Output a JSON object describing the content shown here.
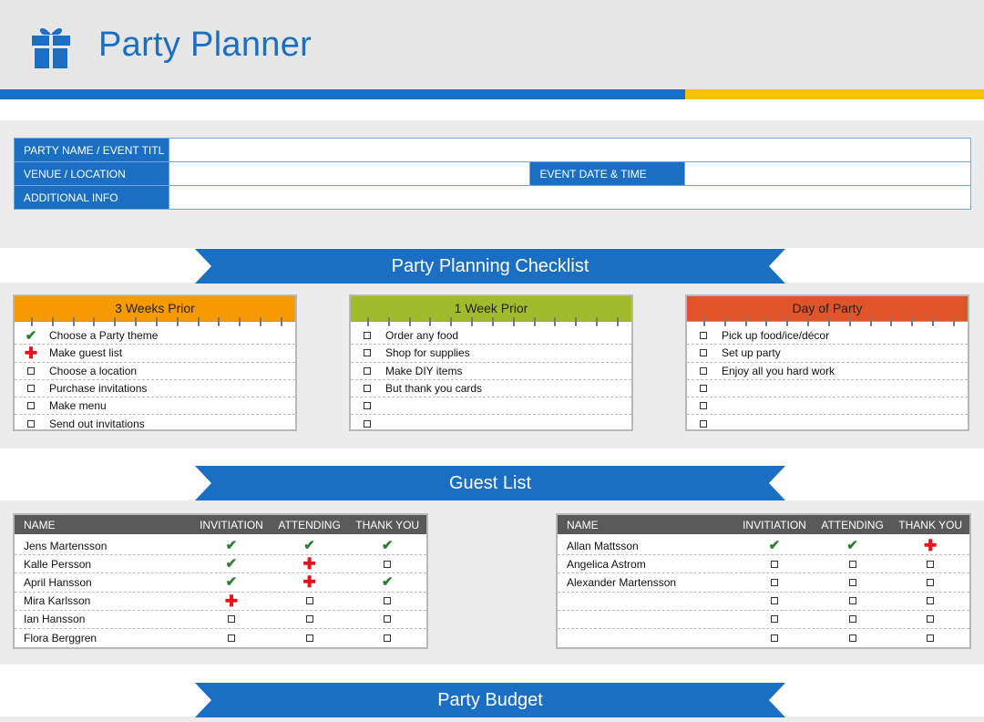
{
  "app": {
    "title": "Party Planner",
    "colors": {
      "brand_blue": "#1b6fc2",
      "accent_yellow": "#f8c200",
      "weeks3": "#f59a00",
      "week1": "#a2bb2d",
      "day": "#e0542a",
      "header_gray": "#595959"
    },
    "logo_icon": "gift-icon"
  },
  "event_info": {
    "party_name_label": "PARTY NAME / EVENT TITL",
    "party_name_value": "",
    "venue_label": "VENUE / LOCATION",
    "venue_value": "",
    "event_date_label": "EVENT DATE & TIME",
    "event_date_value": "",
    "additional_label": "ADDITIONAL INFO",
    "additional_value": ""
  },
  "sections": {
    "checklist": "Party Planning Checklist",
    "guests": "Guest List",
    "budget": "Party Budget"
  },
  "checklists": [
    {
      "title": "3 Weeks Prior",
      "items": [
        {
          "status": "check",
          "text": "Choose a Party theme"
        },
        {
          "status": "plus",
          "text": "Make guest list"
        },
        {
          "status": "box",
          "text": "Choose a location"
        },
        {
          "status": "box",
          "text": "Purchase invitations"
        },
        {
          "status": "box",
          "text": "Make menu"
        },
        {
          "status": "box",
          "text": "Send out invitations"
        }
      ]
    },
    {
      "title": "1 Week Prior",
      "items": [
        {
          "status": "box",
          "text": "Order any food"
        },
        {
          "status": "box",
          "text": "Shop for supplies"
        },
        {
          "status": "box",
          "text": "Make DIY items"
        },
        {
          "status": "box",
          "text": "But thank you cards"
        },
        {
          "status": "box",
          "text": ""
        },
        {
          "status": "box",
          "text": ""
        }
      ]
    },
    {
      "title": "Day of Party",
      "items": [
        {
          "status": "box",
          "text": "Pick up food/ice/décor"
        },
        {
          "status": "box",
          "text": "Set up party"
        },
        {
          "status": "box",
          "text": "Enjoy all you hard work"
        },
        {
          "status": "box",
          "text": ""
        },
        {
          "status": "box",
          "text": ""
        },
        {
          "status": "box",
          "text": ""
        }
      ]
    }
  ],
  "guest_columns": [
    "NAME",
    "INVITIATION",
    "ATTENDING",
    "THANK YOU"
  ],
  "guest_tables": [
    {
      "rows": [
        {
          "name": "Jens Martensson",
          "inv": "check",
          "att": "check",
          "ty": "check"
        },
        {
          "name": "Kalle Persson",
          "inv": "check",
          "att": "plus",
          "ty": "box"
        },
        {
          "name": "April Hansson",
          "inv": "check",
          "att": "plus",
          "ty": "check"
        },
        {
          "name": "Mira Karlsson",
          "inv": "plus",
          "att": "box",
          "ty": "box"
        },
        {
          "name": "Ian Hansson",
          "inv": "box",
          "att": "box",
          "ty": "box"
        },
        {
          "name": "Flora Berggren",
          "inv": "box",
          "att": "box",
          "ty": "box"
        }
      ]
    },
    {
      "rows": [
        {
          "name": "Allan Mattsson",
          "inv": "check",
          "att": "check",
          "ty": "plus"
        },
        {
          "name": "Angelica Astrom",
          "inv": "box",
          "att": "box",
          "ty": "box"
        },
        {
          "name": "Alexander Martensson",
          "inv": "box",
          "att": "box",
          "ty": "box"
        },
        {
          "name": "",
          "inv": "box",
          "att": "box",
          "ty": "box"
        },
        {
          "name": "",
          "inv": "box",
          "att": "box",
          "ty": "box"
        },
        {
          "name": "",
          "inv": "box",
          "att": "box",
          "ty": "box"
        }
      ]
    }
  ]
}
